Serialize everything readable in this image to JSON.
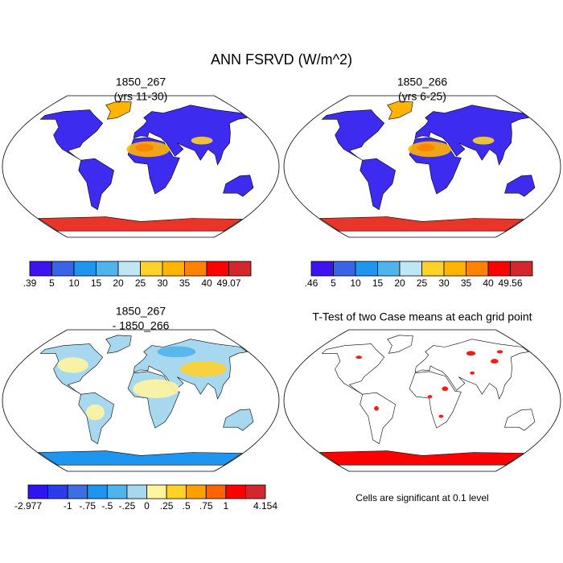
{
  "title": "ANN FSRVD (W/m^2)",
  "panels": [
    {
      "title": [
        "1850_267",
        "(yrs 11-30)"
      ],
      "colorbar": {
        "labels": [
          ".39",
          "5",
          "10",
          "15",
          "20",
          "25",
          "30",
          "35",
          "40",
          "49.07"
        ],
        "colors": [
          "#3d14f0",
          "#3a64e6",
          "#1e96f0",
          "#50b4ec",
          "#bee6f5",
          "#ffd22a",
          "#ffb400",
          "#ff8200",
          "#ff0000",
          "#d2282d"
        ]
      }
    },
    {
      "title": [
        "1850_266",
        "(yrs 6-25)"
      ],
      "colorbar": {
        "labels": [
          ".46",
          "5",
          "10",
          "15",
          "20",
          "25",
          "30",
          "35",
          "40",
          "49.56"
        ],
        "colors": [
          "#3d14f0",
          "#3a64e6",
          "#1e96f0",
          "#50b4ec",
          "#bee6f5",
          "#ffd22a",
          "#ffb400",
          "#ff8200",
          "#ff0000",
          "#d2282d"
        ]
      }
    },
    {
      "title": [
        "1850_267",
        "- 1850_266"
      ],
      "colorbar": {
        "labels": [
          "-2.977",
          null,
          "-1",
          "-.75",
          "-.5",
          "-.25",
          "0",
          ".25",
          ".5",
          ".75",
          "1",
          null,
          "4.154"
        ],
        "colors": [
          "#3014f0",
          "#2a3ce8",
          "#3c6ee6",
          "#1e96f0",
          "#50b4ec",
          "#a8d8f0",
          "#fff5a0",
          "#ffd22a",
          "#ffa000",
          "#ff6400",
          "#ff0000",
          "#d2282d"
        ]
      }
    },
    {
      "title": [
        "T-Test of two Case means at each grid point"
      ],
      "note": "Cells are significant at 0.1 level"
    }
  ]
}
